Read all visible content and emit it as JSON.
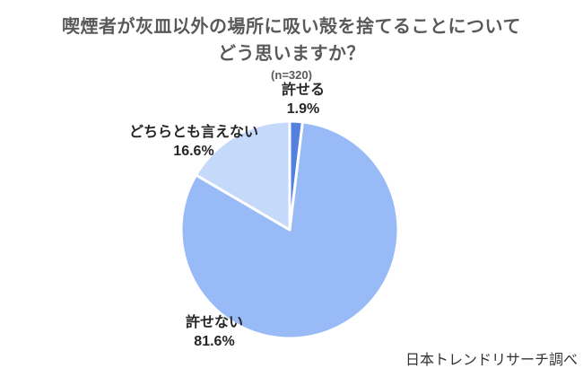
{
  "header": {
    "title_line1": "喫煙者が灰皿以外の場所に吸い殻を捨てることについて",
    "title_line2": "どう思いますか？",
    "sample_size": "(n=320)"
  },
  "footer": {
    "source": "日本トレンドリサーチ調べ"
  },
  "chart_data": {
    "type": "pie",
    "title": "喫煙者が灰皿以外の場所に吸い殻を捨てることについてどう思いますか？",
    "sample_size_n": 320,
    "categories": [
      "許せる",
      "許せない",
      "どちらとも言えない"
    ],
    "values": [
      1.9,
      81.6,
      16.6
    ],
    "unit": "%",
    "colors": [
      "#5480e0",
      "#98bbf8",
      "#c5dafb"
    ],
    "slice_border_color": "#ffffff",
    "start_angle_deg": 0,
    "direction": "clockwise",
    "legend_position": "none",
    "labels": [
      {
        "name": "許せる",
        "value": "1.9%"
      },
      {
        "name": "許せない",
        "value": "81.6%"
      },
      {
        "name": "どちらとも言えない",
        "value": "16.6%"
      }
    ]
  }
}
